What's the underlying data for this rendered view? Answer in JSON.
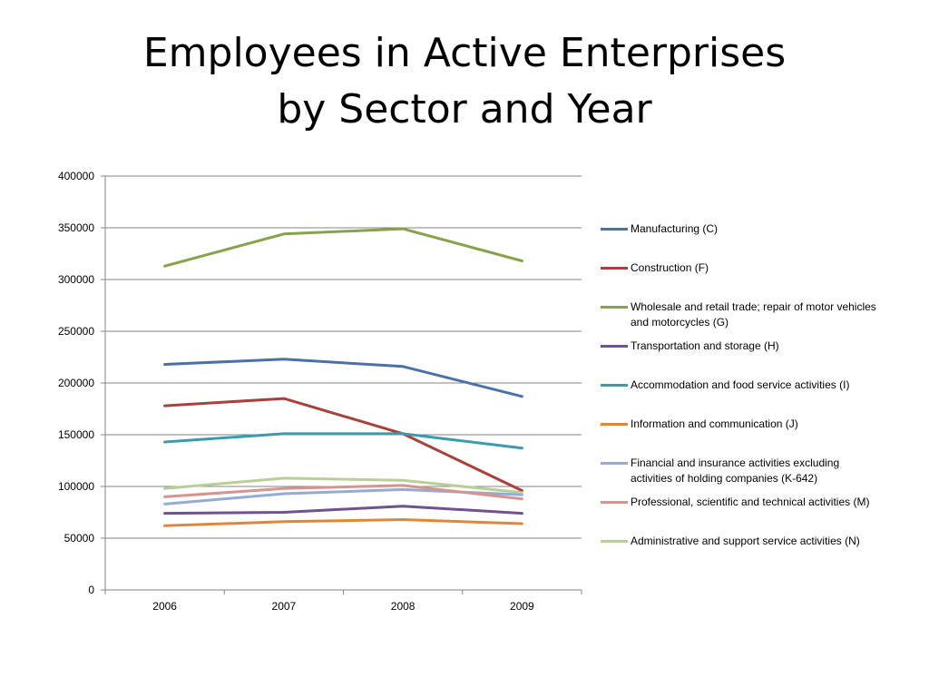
{
  "chart_data": {
    "type": "line",
    "title_lines": [
      "Employees in Active Enterprises",
      "by Sector and Year"
    ],
    "xlabel": "",
    "ylabel": "",
    "categories": [
      "2006",
      "2007",
      "2008",
      "2009"
    ],
    "ylim": [
      0,
      400000
    ],
    "yticks": [
      "0",
      "50000",
      "100000",
      "150000",
      "200000",
      "250000",
      "300000",
      "350000",
      "400000"
    ],
    "grid": true,
    "legend_position": "right",
    "series": [
      {
        "name": "Manufacturing (C)",
        "color": "#4A72A6",
        "values": [
          218000,
          223000,
          216000,
          187000
        ]
      },
      {
        "name": "Construction (F)",
        "color": "#A9403C",
        "values": [
          178000,
          185000,
          151000,
          96000
        ]
      },
      {
        "name": "Wholesale and retail trade; repair of motor vehicles and motorcycles (G)",
        "color": "#86A24A",
        "values": [
          313000,
          344000,
          349000,
          318000
        ]
      },
      {
        "name": "Transportation and storage (H)",
        "color": "#6F5290",
        "values": [
          74000,
          75000,
          81000,
          74000
        ]
      },
      {
        "name": "Accommodation and food service activities (I)",
        "color": "#3B9BAE",
        "values": [
          143000,
          151000,
          151000,
          137000
        ]
      },
      {
        "name": "Information and communication (J)",
        "color": "#E0863A",
        "values": [
          62000,
          66000,
          68000,
          64000
        ]
      },
      {
        "name": "Financial and insurance activities excluding activities of holding companies (K-642)",
        "color": "#95ABD5",
        "values": [
          83000,
          93000,
          97000,
          92000
        ]
      },
      {
        "name": "Professional, scientific and technical activities (M)",
        "color": "#D49490",
        "values": [
          90000,
          98000,
          101000,
          88000
        ]
      },
      {
        "name": "Administrative and support service activities (N)",
        "color": "#B8D097",
        "values": [
          98000,
          108000,
          106000,
          94000
        ]
      }
    ]
  }
}
